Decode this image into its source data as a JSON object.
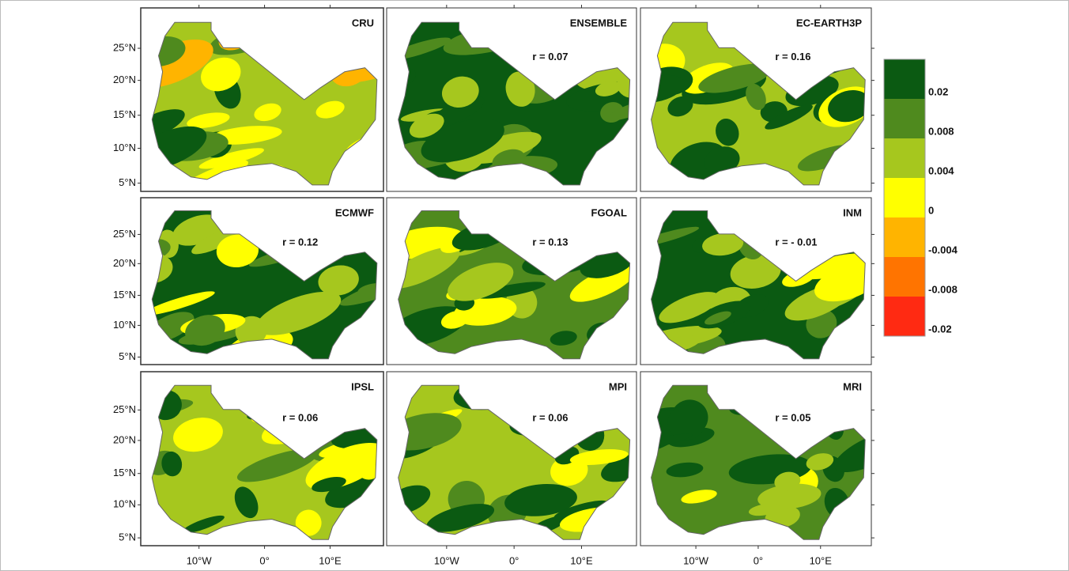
{
  "panels": [
    {
      "title": "CRU"
    },
    {
      "title": "ENSEMBLE",
      "r": "r = 0.07"
    },
    {
      "title": "EC-EARTH3P",
      "r": "r = 0.16"
    },
    {
      "title": "ECMWF",
      "r": "r = 0.12"
    },
    {
      "title": "FGOAL",
      "r": "r = 0.13"
    },
    {
      "title": "INM",
      "r": "r = - 0.01"
    },
    {
      "title": "IPSL",
      "r": "r = 0.06"
    },
    {
      "title": "MPI",
      "r": "r = 0.06"
    },
    {
      "title": "MRI",
      "r": "r = 0.05"
    }
  ],
  "y_axis_labels": [
    "25°N",
    "20°N",
    "15°N",
    "10°N",
    "5°N"
  ],
  "x_axis_labels": [
    "10°W",
    "0°",
    "10°E"
  ],
  "legend": [
    {
      "label": "0.02",
      "color": "#0b5a12"
    },
    {
      "label": "0.008",
      "color": "#4f8a1e"
    },
    {
      "label": "0.004",
      "color": "#a6c71e"
    },
    {
      "label": "0",
      "color": "#ffff00"
    },
    {
      "label": "-0.004",
      "color": "#ffb400"
    },
    {
      "label": "-0.008",
      "color": "#ff7400"
    },
    {
      "label": "-0.02",
      "color": "#ff2a12"
    }
  ]
}
